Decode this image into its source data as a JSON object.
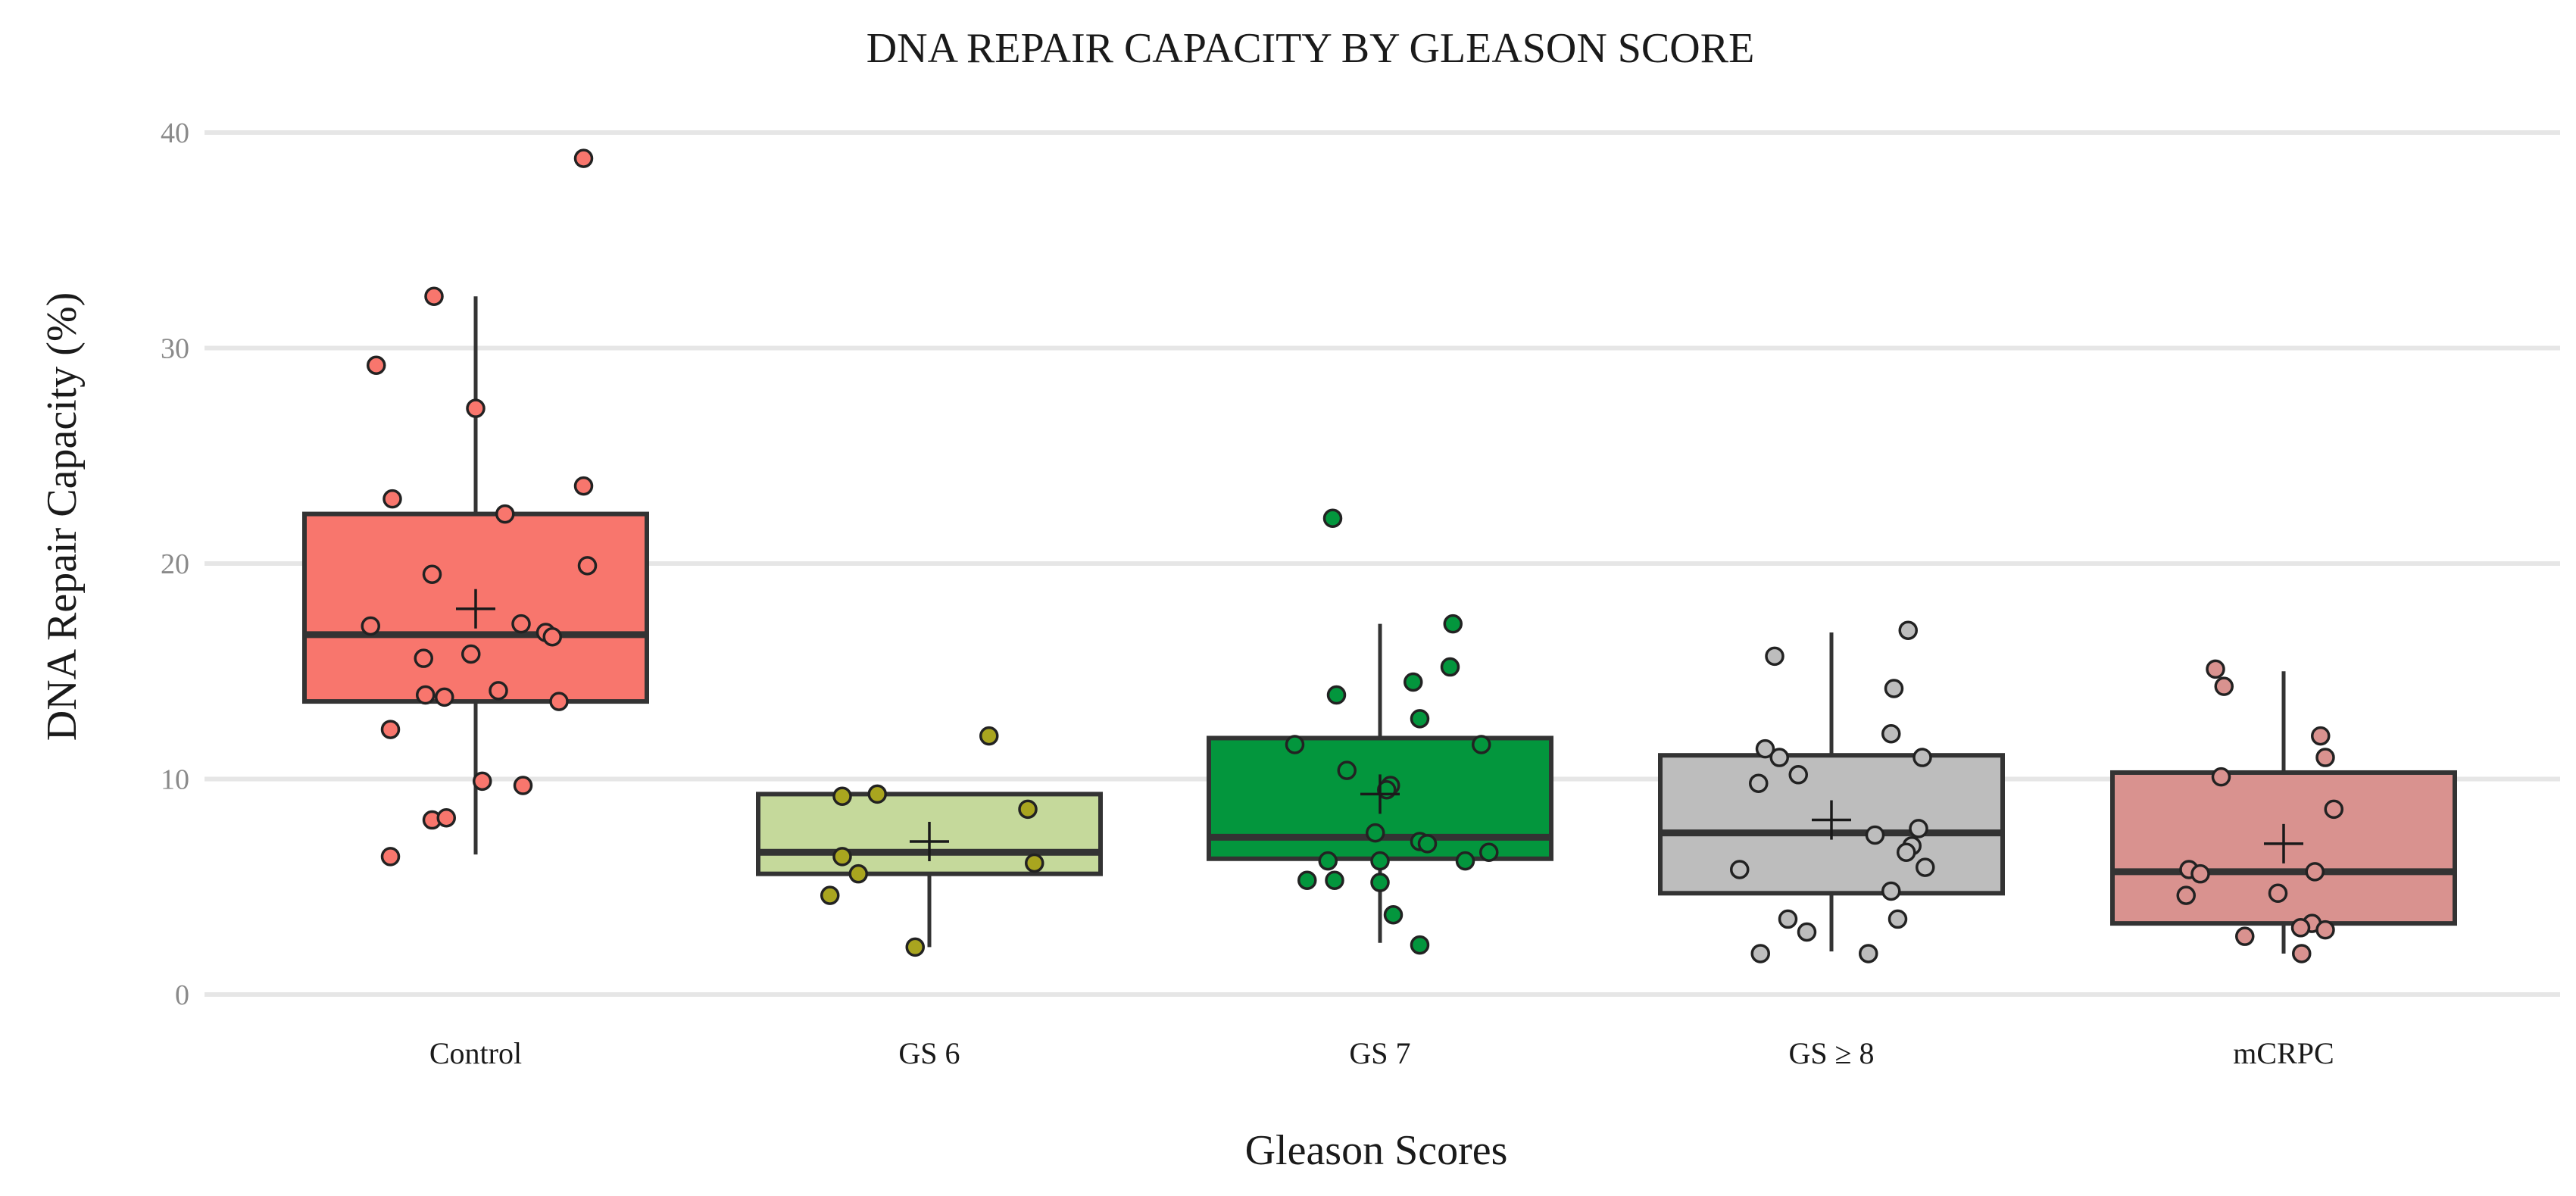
{
  "chart_data": {
    "type": "box",
    "title": "DNA REPAIR CAPACITY BY GLEASON SCORE",
    "xlabel": "Gleason Scores",
    "ylabel": "DNA Repair Capacity (%)",
    "ylim": [
      -1,
      42
    ],
    "yticks": [
      "0",
      "10",
      "20",
      "30",
      "40"
    ],
    "ytick_values": [
      0,
      10,
      20,
      30,
      40
    ],
    "grid": true,
    "legend": "none",
    "mean_marker": "cross",
    "groups": [
      {
        "name": "Control",
        "fill": "#F8766D",
        "point_color": "#F8766D",
        "box": {
          "q1": 13.6,
          "median": 16.7,
          "q3": 22.3,
          "whisker_low": 6.5,
          "whisker_high": 32.4
        },
        "mean": 17.9,
        "points": [
          {
            "dx": 1.14,
            "y": 38.8
          },
          {
            "dx": -0.44,
            "y": 32.4
          },
          {
            "dx": -1.05,
            "y": 29.2
          },
          {
            "dx": 0.0,
            "y": 27.2
          },
          {
            "dx": -0.88,
            "y": 23.0
          },
          {
            "dx": 1.14,
            "y": 23.6
          },
          {
            "dx": 0.31,
            "y": 22.3
          },
          {
            "dx": 1.18,
            "y": 19.9
          },
          {
            "dx": -0.46,
            "y": 19.5
          },
          {
            "dx": -1.11,
            "y": 17.1
          },
          {
            "dx": 0.48,
            "y": 17.2
          },
          {
            "dx": 0.74,
            "y": 16.8
          },
          {
            "dx": 0.81,
            "y": 16.6
          },
          {
            "dx": -0.55,
            "y": 15.6
          },
          {
            "dx": -0.05,
            "y": 15.8
          },
          {
            "dx": -0.53,
            "y": 13.9
          },
          {
            "dx": -0.33,
            "y": 13.8
          },
          {
            "dx": 0.24,
            "y": 14.1
          },
          {
            "dx": 0.88,
            "y": 13.6
          },
          {
            "dx": -0.9,
            "y": 12.3
          },
          {
            "dx": 0.07,
            "y": 9.9
          },
          {
            "dx": 0.5,
            "y": 9.7
          },
          {
            "dx": -0.46,
            "y": 8.1
          },
          {
            "dx": -0.31,
            "y": 8.2
          },
          {
            "dx": -0.9,
            "y": 6.4
          }
        ]
      },
      {
        "name": "GS 6",
        "fill": "#C5D99B",
        "point_color": "#A9A51F",
        "box": {
          "q1": 5.6,
          "median": 6.6,
          "q3": 9.3,
          "whisker_low": 2.2,
          "whisker_high": 9.3
        },
        "mean": 7.1,
        "points": [
          {
            "dx": 0.63,
            "y": 12.0
          },
          {
            "dx": -0.92,
            "y": 9.2
          },
          {
            "dx": -0.55,
            "y": 9.3
          },
          {
            "dx": 1.04,
            "y": 8.6
          },
          {
            "dx": -0.92,
            "y": 6.4
          },
          {
            "dx": 1.11,
            "y": 6.1
          },
          {
            "dx": -0.75,
            "y": 5.6
          },
          {
            "dx": -1.05,
            "y": 4.6
          },
          {
            "dx": -0.15,
            "y": 2.2
          }
        ]
      },
      {
        "name": "GS 7",
        "fill": "#03963D",
        "point_color": "#03963D",
        "box": {
          "q1": 6.3,
          "median": 7.3,
          "q3": 11.9,
          "whisker_low": 2.4,
          "whisker_high": 17.2
        },
        "mean": 9.3,
        "points": [
          {
            "dx": -0.5,
            "y": 22.1
          },
          {
            "dx": 0.77,
            "y": 17.2
          },
          {
            "dx": 0.74,
            "y": 15.2
          },
          {
            "dx": 0.35,
            "y": 14.5
          },
          {
            "dx": -0.46,
            "y": 13.9
          },
          {
            "dx": 0.42,
            "y": 12.8
          },
          {
            "dx": -0.9,
            "y": 11.6
          },
          {
            "dx": 1.07,
            "y": 11.6
          },
          {
            "dx": -0.35,
            "y": 10.4
          },
          {
            "dx": 0.11,
            "y": 9.7
          },
          {
            "dx": 0.07,
            "y": 9.5
          },
          {
            "dx": -0.05,
            "y": 7.5
          },
          {
            "dx": 0.42,
            "y": 7.1
          },
          {
            "dx": 0.5,
            "y": 7.0
          },
          {
            "dx": 1.15,
            "y": 6.6
          },
          {
            "dx": -0.55,
            "y": 6.2
          },
          {
            "dx": 0.0,
            "y": 6.2
          },
          {
            "dx": 0.9,
            "y": 6.2
          },
          {
            "dx": -0.77,
            "y": 5.3
          },
          {
            "dx": -0.48,
            "y": 5.3
          },
          {
            "dx": 0.0,
            "y": 5.2
          },
          {
            "dx": 0.14,
            "y": 3.7
          },
          {
            "dx": 0.42,
            "y": 2.3
          }
        ]
      },
      {
        "name": "GS ≥ 8",
        "fill": "#BDBDBD",
        "point_color": "#BDBDBD",
        "box": {
          "q1": 4.7,
          "median": 7.5,
          "q3": 11.1,
          "whisker_low": 2.0,
          "whisker_high": 16.8
        },
        "mean": 8.1,
        "points": [
          {
            "dx": 0.81,
            "y": 16.9
          },
          {
            "dx": -0.6,
            "y": 15.7
          },
          {
            "dx": 0.66,
            "y": 14.2
          },
          {
            "dx": 0.63,
            "y": 12.1
          },
          {
            "dx": -0.7,
            "y": 11.4
          },
          {
            "dx": -0.55,
            "y": 11.0
          },
          {
            "dx": 0.96,
            "y": 11.0
          },
          {
            "dx": -0.35,
            "y": 10.2
          },
          {
            "dx": -0.77,
            "y": 9.8
          },
          {
            "dx": 0.46,
            "y": 7.4
          },
          {
            "dx": 0.92,
            "y": 7.7
          },
          {
            "dx": 0.85,
            "y": 6.9
          },
          {
            "dx": 0.79,
            "y": 6.6
          },
          {
            "dx": -0.97,
            "y": 5.8
          },
          {
            "dx": 0.99,
            "y": 5.9
          },
          {
            "dx": 0.63,
            "y": 4.8
          },
          {
            "dx": -0.46,
            "y": 3.5
          },
          {
            "dx": 0.7,
            "y": 3.5
          },
          {
            "dx": -0.26,
            "y": 2.9
          },
          {
            "dx": -0.75,
            "y": 1.9
          },
          {
            "dx": 0.39,
            "y": 1.9
          }
        ]
      },
      {
        "name": "mCRPC",
        "fill": "#D9928F",
        "point_color": "#D9928F",
        "box": {
          "q1": 3.3,
          "median": 5.7,
          "q3": 10.3,
          "whisker_low": 1.9,
          "whisker_high": 15.0
        },
        "mean": 7.0,
        "points": [
          {
            "dx": -0.72,
            "y": 15.1
          },
          {
            "dx": -0.63,
            "y": 14.3
          },
          {
            "dx": 0.39,
            "y": 12.0
          },
          {
            "dx": 0.44,
            "y": 11.0
          },
          {
            "dx": -0.66,
            "y": 10.1
          },
          {
            "dx": 0.53,
            "y": 8.6
          },
          {
            "dx": -1.0,
            "y": 5.8
          },
          {
            "dx": -0.88,
            "y": 5.6
          },
          {
            "dx": 0.33,
            "y": 5.7
          },
          {
            "dx": -1.03,
            "y": 4.6
          },
          {
            "dx": -0.06,
            "y": 4.7
          },
          {
            "dx": 0.3,
            "y": 3.3
          },
          {
            "dx": 0.18,
            "y": 3.1
          },
          {
            "dx": 0.44,
            "y": 3.0
          },
          {
            "dx": -0.41,
            "y": 2.7
          },
          {
            "dx": 0.19,
            "y": 1.9
          }
        ]
      }
    ]
  }
}
